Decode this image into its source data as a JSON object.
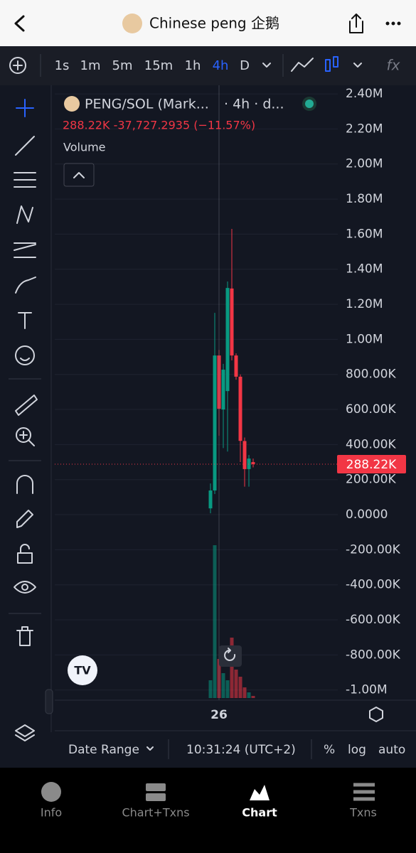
{
  "header": {
    "title": "Chinese peng 企鹅"
  },
  "toolbar": {
    "intervals": [
      "1s",
      "1m",
      "5m",
      "15m",
      "1h",
      "4h",
      "D"
    ]
  },
  "legend": {
    "symbol": "PENG/SOL (Mark...",
    "details": "· 4h · d...",
    "quote": "288.22K -37,727.2935 (−11.57%)",
    "study": "Volume"
  },
  "chart_data": {
    "type": "candlestick",
    "categories": [
      null,
      null,
      "26",
      null,
      null,
      null,
      null,
      null,
      null,
      null,
      null
    ],
    "open": [
      36000,
      138000,
      908000,
      600000,
      705000,
      1290000,
      908000,
      787000,
      420000,
      260000,
      300000
    ],
    "high": [
      178000,
      1151000,
      940000,
      860000,
      1330000,
      1630000,
      920000,
      800000,
      440000,
      340000,
      320000
    ],
    "low": [
      8000,
      118000,
      450000,
      380000,
      360000,
      880000,
      770000,
      300000,
      160000,
      160000,
      270000
    ],
    "close": [
      138000,
      908000,
      604000,
      827000,
      1293000,
      908000,
      787000,
      421000,
      260000,
      320000,
      288220
    ],
    "volume": [
      25,
      215,
      55,
      35,
      25,
      85,
      40,
      30,
      15,
      8,
      3
    ],
    "up_color": "#089981",
    "down_color": "#f23645",
    "ylim": [
      -1058000,
      2449000
    ],
    "yticks": [
      {
        "value": 2400000,
        "label": "2.40M"
      },
      {
        "value": 2200000,
        "label": "2.20M"
      },
      {
        "value": 2000000,
        "label": "2.00M"
      },
      {
        "value": 1800000,
        "label": "1.80M"
      },
      {
        "value": 1600000,
        "label": "1.60M"
      },
      {
        "value": 1400000,
        "label": "1.40M"
      },
      {
        "value": 1200000,
        "label": "1.20M"
      },
      {
        "value": 1000000,
        "label": "1.00M"
      },
      {
        "value": 800000,
        "label": "800.00K"
      },
      {
        "value": 600000,
        "label": "600.00K"
      },
      {
        "value": 400000,
        "label": "400.00K"
      },
      {
        "value": 200000,
        "label": "200.00K"
      },
      {
        "value": 0,
        "label": "0.0000"
      },
      {
        "value": -200000,
        "label": "-200.00K"
      },
      {
        "value": -400000,
        "label": "-400.00K"
      },
      {
        "value": -600000,
        "label": "-600.00K"
      },
      {
        "value": -800000,
        "label": "-800.00K"
      },
      {
        "value": -1000000,
        "label": "-1.00M"
      }
    ],
    "last_price": {
      "value": 288220,
      "label": "288.22K"
    },
    "grid": true
  },
  "footer": {
    "date_range": "Date Range",
    "time": "10:31:24 (UTC+2)",
    "percent": "%",
    "log": "log",
    "auto": "auto"
  },
  "tabs": [
    "Info",
    "Chart+Txns",
    "Chart",
    "Txns"
  ]
}
